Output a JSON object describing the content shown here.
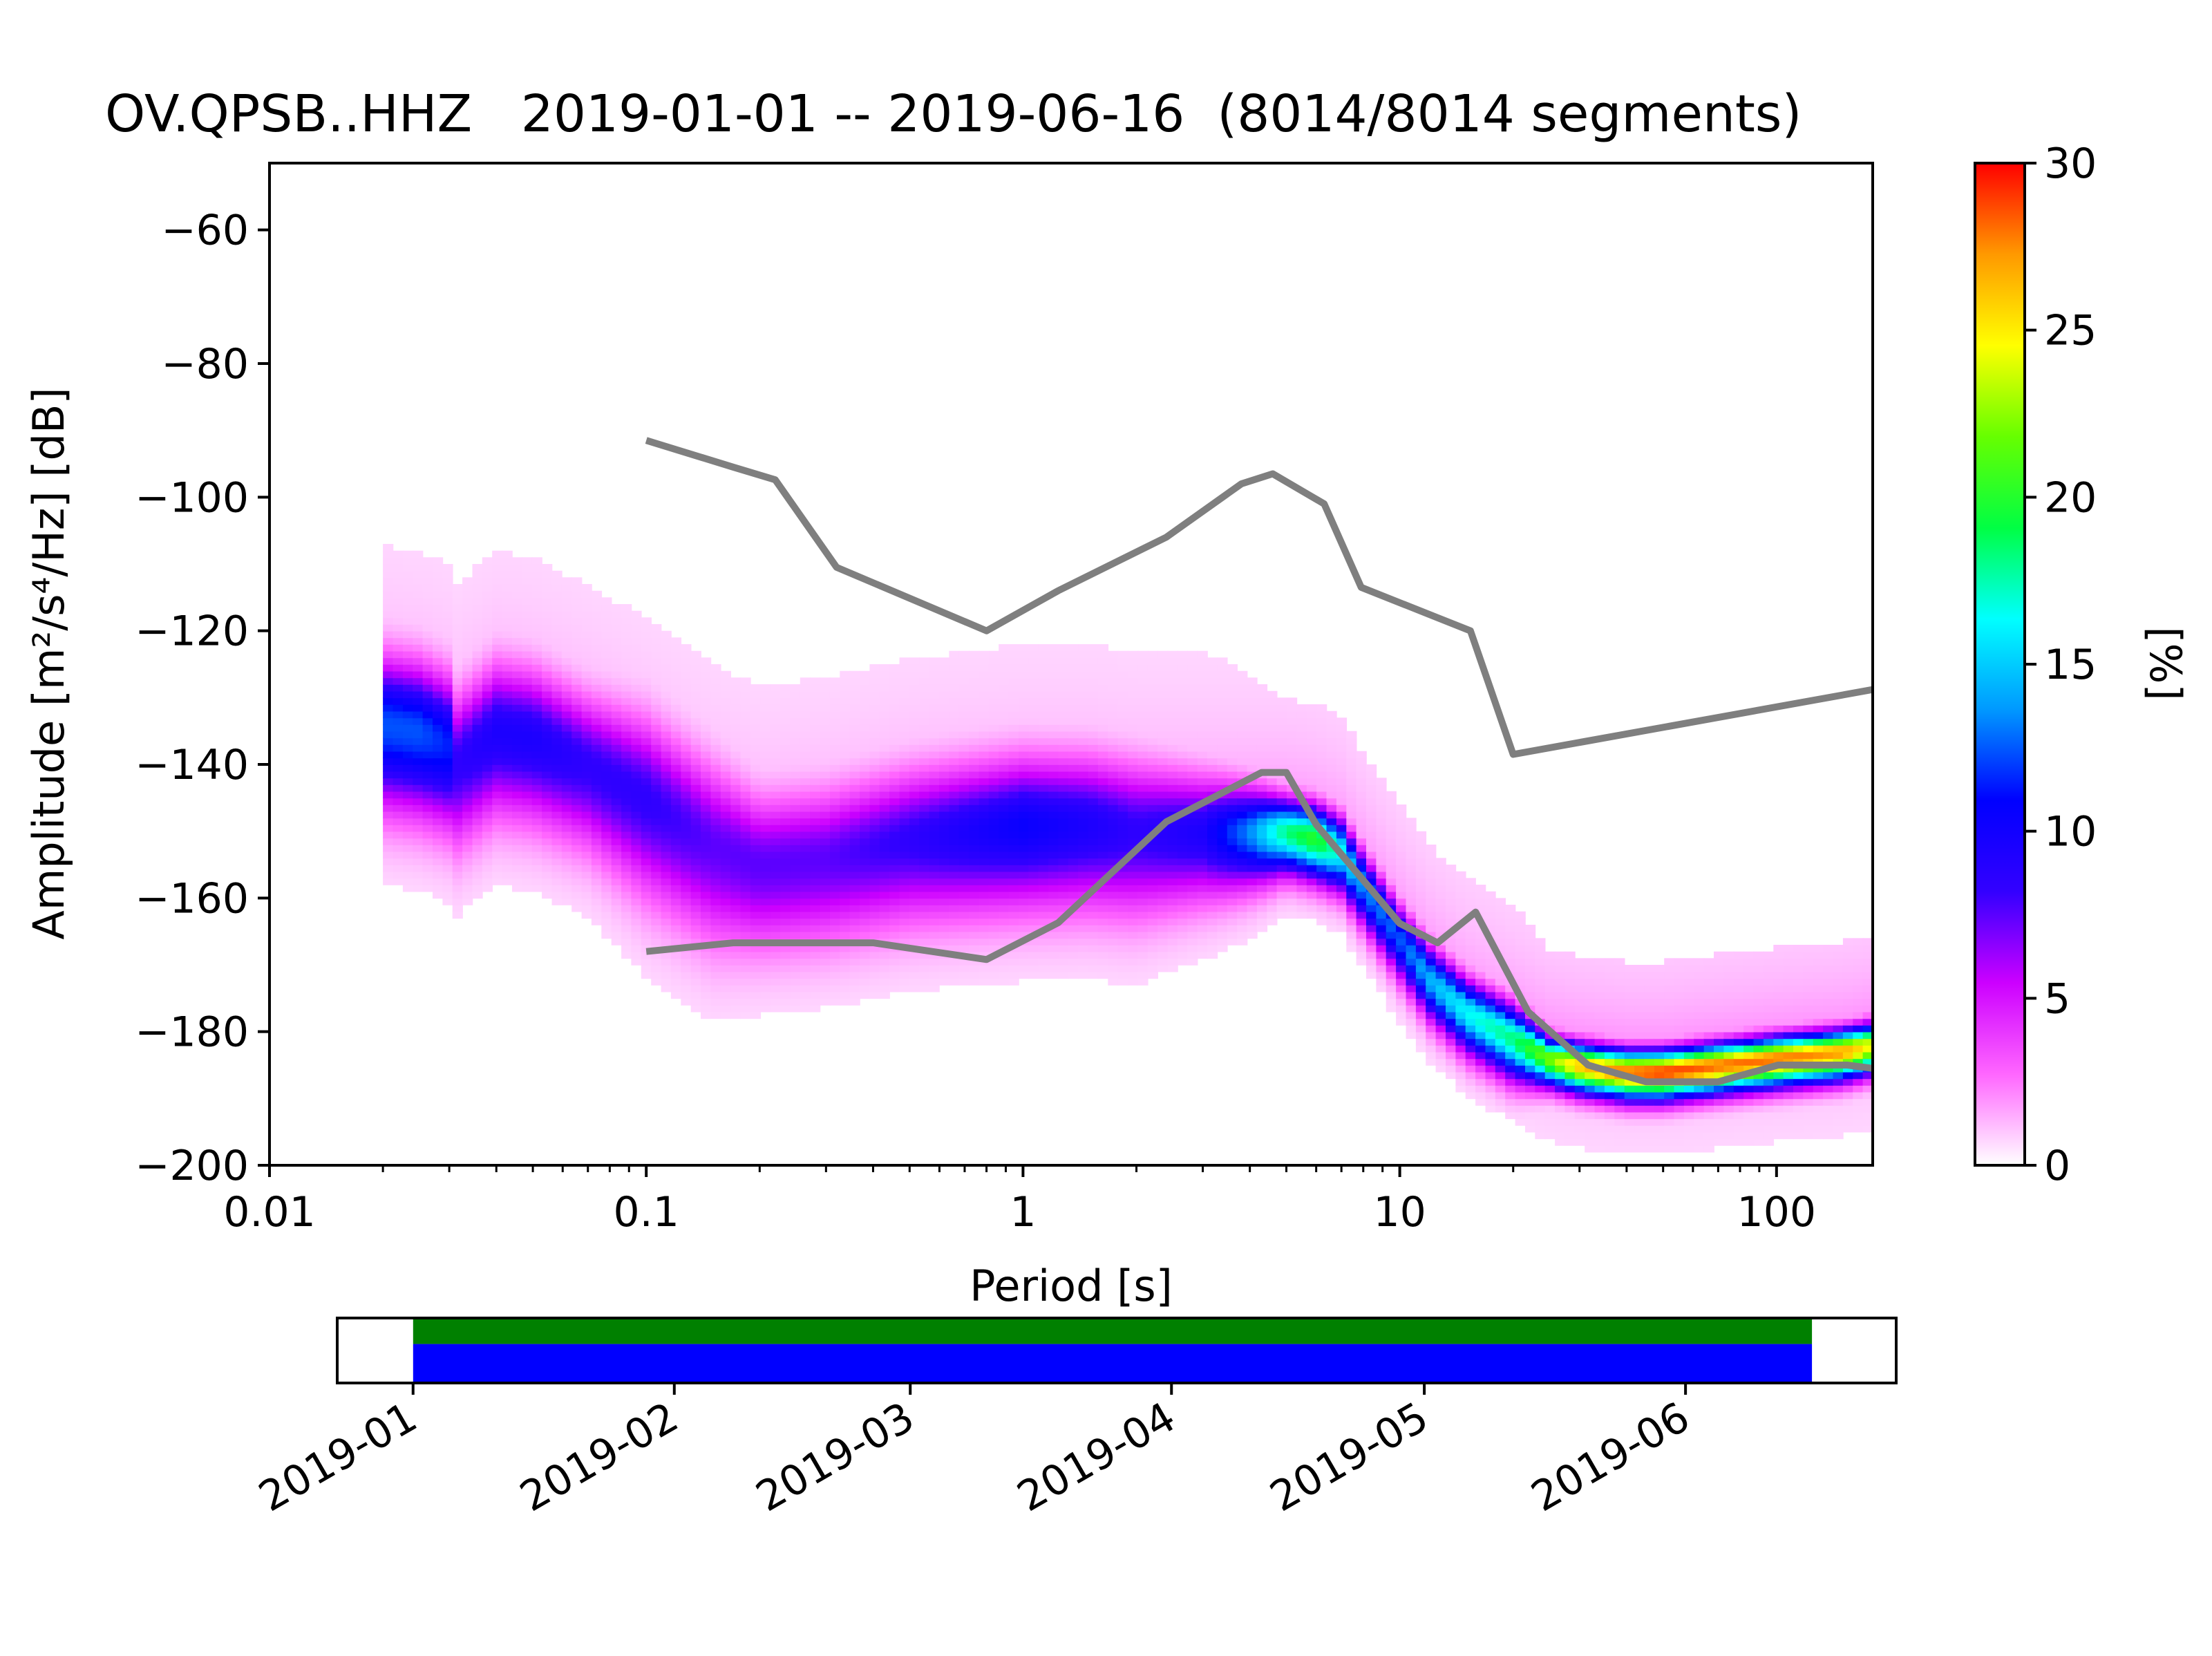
{
  "chart_data": [
    {
      "type": "heatmap",
      "title": "OV.QPSB..HHZ   2019-01-01 -- 2019-06-16  (8014/8014 segments)",
      "xlabel": "Period [s]",
      "ylabel": "Amplitude [m²/s⁴/Hz] [dB]",
      "xscale": "log",
      "xlim": [
        0.01,
        180
      ],
      "ylim": [
        -200,
        -50
      ],
      "xticks": [
        0.01,
        0.1,
        1,
        10,
        100
      ],
      "xtick_labels": [
        "0.01",
        "0.1",
        "1",
        "10",
        "100"
      ],
      "yticks": [
        -200,
        -180,
        -160,
        -140,
        -120,
        -100,
        -80,
        -60
      ],
      "ytick_labels": [
        "−200",
        "−180",
        "−160",
        "−140",
        "−120",
        "−100",
        "−80",
        "−60"
      ],
      "colorbar": {
        "label": "[%]",
        "range": [
          0,
          30
        ],
        "ticks": [
          0,
          5,
          10,
          15,
          20,
          25,
          30
        ],
        "tick_labels": [
          "0",
          "5",
          "10",
          "15",
          "20",
          "25",
          "30"
        ],
        "colormap": [
          "#ffffff",
          "#ff66ff",
          "#cc00ff",
          "#3300ff",
          "#0000ff",
          "#0099ff",
          "#00ffff",
          "#00ff44",
          "#66ff00",
          "#ffff00",
          "#ff9900",
          "#ff0000"
        ]
      },
      "psd_mode": {
        "description_free": true,
        "period": [
          0.02,
          0.025,
          0.03,
          0.031,
          0.04,
          0.05,
          0.07,
          0.1,
          0.15,
          0.2,
          0.3,
          0.5,
          0.7,
          1,
          1.5,
          2,
          3,
          4,
          5,
          6,
          7,
          8,
          10,
          12,
          15,
          20,
          25,
          30,
          40,
          50,
          70,
          100,
          150,
          180
        ],
        "amplitude_db": [
          -134,
          -135,
          -137,
          -140,
          -135,
          -136,
          -140,
          -145,
          -152,
          -155,
          -154,
          -151,
          -150,
          -149,
          -149,
          -150,
          -150,
          -150,
          -150,
          -151,
          -153,
          -158,
          -166,
          -172,
          -177,
          -181,
          -184,
          -185,
          -186,
          -186,
          -185,
          -184,
          -183,
          -182
        ],
        "spread_db": [
          6,
          6,
          6,
          6,
          6,
          6,
          6,
          7,
          7,
          6,
          6,
          6,
          6,
          6,
          6,
          6,
          5,
          4,
          3,
          3,
          3,
          3,
          3,
          3,
          3,
          3,
          2,
          2,
          2,
          2,
          2,
          2,
          2,
          2
        ],
        "peak_percent": [
          12,
          12,
          11,
          8,
          9,
          9,
          8,
          8,
          7,
          7,
          7,
          8,
          9,
          10,
          9,
          8,
          9,
          13,
          18,
          20,
          16,
          13,
          12,
          14,
          16,
          18,
          22,
          26,
          28,
          29,
          28,
          28,
          27,
          24
        ]
      },
      "series": [
        {
          "name": "",
          "color": "#7f7f7f",
          "x": [
            0.1,
            0.17,
            0.22,
            0.32,
            0.8,
            1.24,
            2.4,
            3.8,
            4.6,
            6.3,
            7.9,
            15.4,
            20,
            180
          ],
          "y": [
            -91.5,
            -95.5,
            -97.4,
            -110.5,
            -120,
            -114,
            -106,
            -98,
            -96.5,
            -101,
            -113.5,
            -120,
            -138.5,
            -128.8
          ]
        },
        {
          "name": "",
          "color": "#7f7f7f",
          "x": [
            0.1,
            0.17,
            0.4,
            0.8,
            1.24,
            2.4,
            4.3,
            5.0,
            6.0,
            10,
            12.6,
            15.9,
            21.9,
            31.6,
            45,
            70,
            101,
            154,
            180
          ],
          "y": [
            -168,
            -166.7,
            -166.7,
            -169.2,
            -163.7,
            -148.6,
            -141.2,
            -141.2,
            -149,
            -163.8,
            -166.7,
            -162.1,
            -177,
            -185,
            -187.5,
            -187.5,
            -185,
            -185,
            -185.5
          ]
        }
      ]
    },
    {
      "type": "timeline",
      "x_start": "2018-12-23",
      "x_end": "2019-06-26",
      "tick_labels": [
        "2019-01",
        "2019-02",
        "2019-03",
        "2019-04",
        "2019-05",
        "2019-06"
      ],
      "tick_dates": [
        "2019-01-01",
        "2019-02-01",
        "2019-03-01",
        "2019-04-01",
        "2019-05-01",
        "2019-06-01"
      ],
      "bars": [
        {
          "start": "2019-01-01",
          "end": "2019-06-16",
          "color": "#008000"
        },
        {
          "start": "2019-01-01",
          "end": "2019-06-16",
          "color": "#0000ff"
        }
      ]
    }
  ]
}
